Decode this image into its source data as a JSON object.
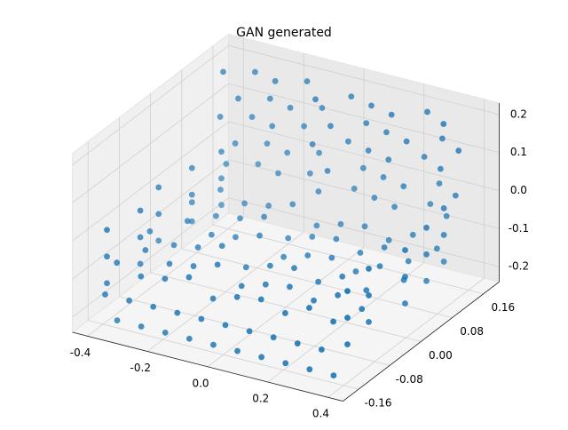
{
  "chart_data": {
    "type": "scatter3d",
    "title": "GAN generated",
    "color": "#1f77b4",
    "grid": true,
    "xlim": [
      -0.45,
      0.45
    ],
    "ylim": [
      -0.2,
      0.2
    ],
    "zlim": [
      -0.24,
      0.23
    ],
    "xticks": [
      -0.4,
      -0.2,
      {
        "value": 0,
        "label": "0.0"
      },
      0.2,
      0.4
    ],
    "yticks": [
      -0.16,
      -0.08,
      {
        "value": 0,
        "label": "0.00"
      },
      0.08,
      0.16
    ],
    "zticks": [
      -0.2,
      -0.1,
      {
        "value": 0,
        "label": "0.0"
      },
      0.1,
      0.2
    ],
    "x": [
      -0.38,
      -0.3,
      -0.22,
      -0.14,
      -0.06,
      0.02,
      0.1,
      0.18,
      0.26,
      0.34,
      -0.35,
      -0.27,
      -0.19,
      -0.11,
      -0.03,
      0.05,
      0.13,
      0.21,
      0.29,
      0.37,
      -0.4,
      -0.32,
      -0.24,
      -0.16,
      -0.08,
      0,
      0.08,
      0.16,
      0.24,
      0.32,
      -0.34,
      -0.26,
      -0.18,
      -0.1,
      -0.02,
      0.06,
      0.14,
      0.22,
      0.3,
      0.38,
      -0.39,
      -0.31,
      -0.23,
      -0.15,
      -0.07,
      0.01,
      0.09,
      0.17,
      0.25,
      0.33,
      -0.36,
      -0.28,
      -0.2,
      -0.12,
      -0.04,
      0.04,
      0.12,
      0.2,
      0.28,
      0.36,
      -0.38,
      -0.3,
      -0.22,
      -0.14,
      -0.06,
      0.02,
      0.1,
      0.18,
      0.26,
      0.34,
      -0.35,
      -0.27,
      -0.19,
      -0.11,
      -0.03,
      0.05,
      0.13,
      0.21,
      0.29,
      0.37,
      -0.4,
      -0.32,
      -0.24,
      -0.16,
      -0.08,
      0,
      0.08,
      0.16,
      0.24,
      0.32,
      -0.34,
      -0.26,
      -0.18,
      -0.1,
      -0.02,
      0.06,
      0.14,
      0.22,
      0.3,
      0.38,
      -0.39,
      -0.31,
      -0.23,
      -0.15,
      -0.07,
      0.01,
      0.09,
      0.17,
      0.25,
      0.33,
      -0.4,
      -0.38,
      -0.41,
      -0.39,
      -0.37,
      -0.4,
      -0.38,
      -0.41,
      -0.39,
      -0.37,
      -0.4,
      -0.38,
      -0.41,
      -0.39,
      -0.37,
      0.4,
      0.38,
      0.41,
      0.39,
      0.37,
      0.4,
      0.38,
      0.41,
      0.39,
      0.37,
      0.4,
      0.38,
      0.41,
      0.39,
      0.37,
      -0.38,
      -0.3,
      -0.22,
      -0.14,
      -0.06,
      0.02,
      0.1,
      0.18,
      0.26,
      0.34,
      -0.34,
      -0.26,
      -0.18,
      -0.1,
      -0.02,
      0.06,
      0.14,
      0.22,
      0.3,
      0.38
    ],
    "y": [
      -0.14,
      -0.14,
      -0.14,
      -0.14,
      -0.14,
      -0.14,
      -0.14,
      -0.14,
      -0.14,
      -0.14,
      -0.09,
      -0.09,
      -0.09,
      -0.09,
      -0.09,
      -0.09,
      -0.09,
      -0.09,
      -0.09,
      -0.09,
      -0.04,
      -0.04,
      -0.04,
      -0.04,
      -0.04,
      -0.04,
      -0.04,
      -0.04,
      -0.04,
      -0.04,
      0.01,
      0.01,
      0.01,
      0.01,
      0.01,
      0.01,
      0.01,
      0.01,
      0.01,
      0.01,
      0.06,
      0.06,
      0.06,
      0.06,
      0.06,
      0.06,
      0.06,
      0.06,
      0.06,
      0.06,
      0.11,
      0.11,
      0.11,
      0.11,
      0.11,
      0.11,
      0.11,
      0.11,
      0.11,
      0.11,
      0.14,
      0.16,
      0.15,
      0.17,
      0.13,
      0.16,
      0.15,
      0.14,
      0.17,
      0.15,
      0.14,
      0.16,
      0.15,
      0.17,
      0.13,
      0.16,
      0.15,
      0.14,
      0.17,
      0.15,
      0.14,
      0.16,
      0.15,
      0.17,
      0.13,
      0.16,
      0.15,
      0.14,
      0.17,
      0.15,
      0.14,
      0.16,
      0.15,
      0.17,
      0.13,
      0.16,
      0.15,
      0.14,
      0.17,
      0.15,
      0.14,
      0.16,
      0.15,
      0.17,
      0.13,
      0.16,
      0.15,
      0.14,
      0.17,
      0.15,
      -0.15,
      -0.08,
      -0.01,
      0.06,
      0.12,
      -0.15,
      -0.08,
      -0.01,
      0.06,
      0.12,
      -0.15,
      -0.08,
      -0.01,
      0.06,
      0.12,
      -0.15,
      -0.08,
      -0.01,
      0.06,
      0.12,
      -0.15,
      -0.08,
      -0.01,
      0.06,
      0.12,
      -0.15,
      -0.08,
      -0.01,
      0.06,
      0.12,
      -0.17,
      -0.17,
      -0.17,
      -0.17,
      -0.17,
      -0.17,
      -0.17,
      -0.17,
      -0.17,
      -0.17,
      -0.17,
      -0.17,
      -0.17,
      -0.17,
      -0.17,
      -0.17,
      -0.17,
      -0.17,
      -0.17,
      -0.17
    ],
    "z": [
      -0.09,
      -0.11,
      -0.1,
      -0.08,
      -0.12,
      -0.1,
      -0.09,
      -0.11,
      -0.08,
      -0.1,
      -0.09,
      -0.11,
      -0.1,
      -0.08,
      -0.12,
      -0.1,
      -0.09,
      -0.11,
      -0.08,
      -0.1,
      -0.09,
      -0.11,
      -0.1,
      -0.08,
      -0.12,
      -0.1,
      -0.09,
      -0.11,
      -0.08,
      -0.1,
      -0.09,
      -0.11,
      -0.1,
      -0.08,
      -0.12,
      -0.1,
      -0.09,
      -0.11,
      -0.08,
      -0.1,
      -0.09,
      -0.11,
      -0.1,
      -0.08,
      -0.12,
      -0.1,
      -0.09,
      -0.11,
      -0.08,
      -0.1,
      -0.09,
      -0.11,
      -0.1,
      -0.08,
      -0.12,
      -0.1,
      -0.09,
      -0.11,
      -0.08,
      -0.1,
      -0.05,
      -0.05,
      -0.05,
      -0.05,
      -0.05,
      -0.05,
      -0.05,
      -0.05,
      -0.05,
      -0.05,
      0.01,
      0.01,
      0.01,
      0.01,
      0.01,
      0.01,
      0.01,
      0.01,
      0.01,
      0.01,
      0.07,
      0.07,
      0.07,
      0.07,
      0.07,
      0.07,
      0.07,
      0.07,
      0.07,
      0.07,
      0.13,
      0.13,
      0.13,
      0.13,
      0.13,
      0.13,
      0.13,
      0.13,
      0.13,
      0.13,
      0.19,
      0.19,
      0.19,
      0.19,
      0.19,
      0.19,
      0.19,
      0.19,
      0.19,
      0.19,
      -0.14,
      -0.14,
      -0.14,
      -0.14,
      -0.14,
      -0.07,
      -0.07,
      -0.07,
      -0.07,
      -0.07,
      0,
      0,
      0,
      0,
      0,
      -0.14,
      -0.14,
      -0.14,
      -0.14,
      -0.14,
      -0.07,
      -0.07,
      -0.07,
      -0.07,
      -0.07,
      0,
      0,
      0,
      0,
      0,
      -0.15,
      -0.15,
      -0.15,
      -0.15,
      -0.15,
      -0.15,
      -0.15,
      -0.15,
      -0.15,
      -0.15,
      -0.21,
      -0.21,
      -0.21,
      -0.21,
      -0.21,
      -0.21,
      -0.21,
      -0.21,
      -0.21,
      -0.21
    ]
  }
}
